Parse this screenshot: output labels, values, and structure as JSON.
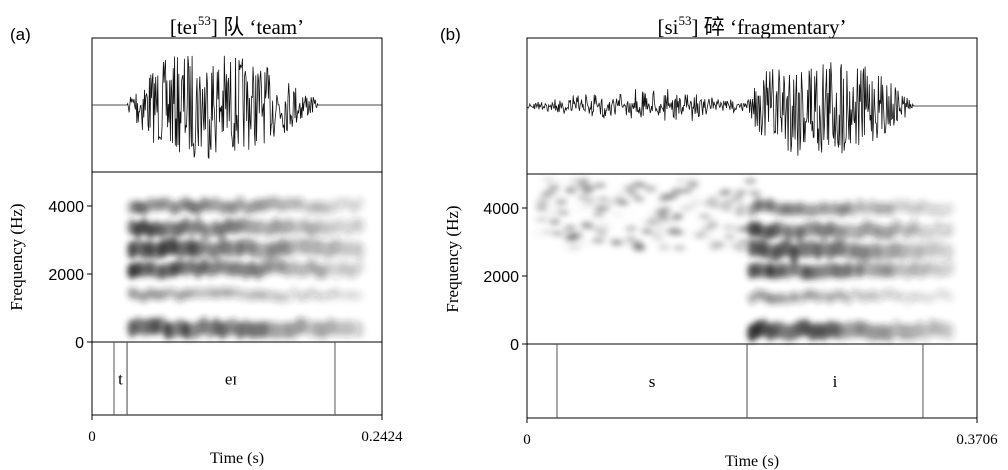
{
  "chart_data": [
    {
      "type": "spectrogram",
      "panel_label": "(a)",
      "title": {
        "pre": "[teɪ",
        "sup": "53",
        "post": "] 队 ‘team’"
      },
      "ylabel": "Frequency (Hz)",
      "xlabel": "Time (s)",
      "ylim": [
        0,
        5000
      ],
      "yticks": [
        0,
        2000,
        4000
      ],
      "xlim": [
        0,
        0.2424
      ],
      "xticks": [
        0,
        0.2424
      ],
      "intervals": [
        {
          "label": "t",
          "start": 0.0184,
          "end": 0.0293
        },
        {
          "label": "eɪ",
          "start": 0.0293,
          "end": 0.2031
        }
      ]
    },
    {
      "type": "spectrogram",
      "panel_label": "(b)",
      "title": {
        "pre": "[si",
        "sup": "53",
        "post": "] 碎 ‘fragmentary’"
      },
      "ylabel": "Frequency (Hz)",
      "xlabel": "Time (s)",
      "ylim": [
        0,
        5000
      ],
      "yticks": [
        0,
        2000,
        4000
      ],
      "xlim": [
        0,
        0.3706
      ],
      "xticks": [
        0,
        0.3706
      ],
      "intervals": [
        {
          "label": "s",
          "start": 0.0247,
          "end": 0.1812
        },
        {
          "label": "i",
          "start": 0.1812,
          "end": 0.3261
        }
      ]
    }
  ]
}
